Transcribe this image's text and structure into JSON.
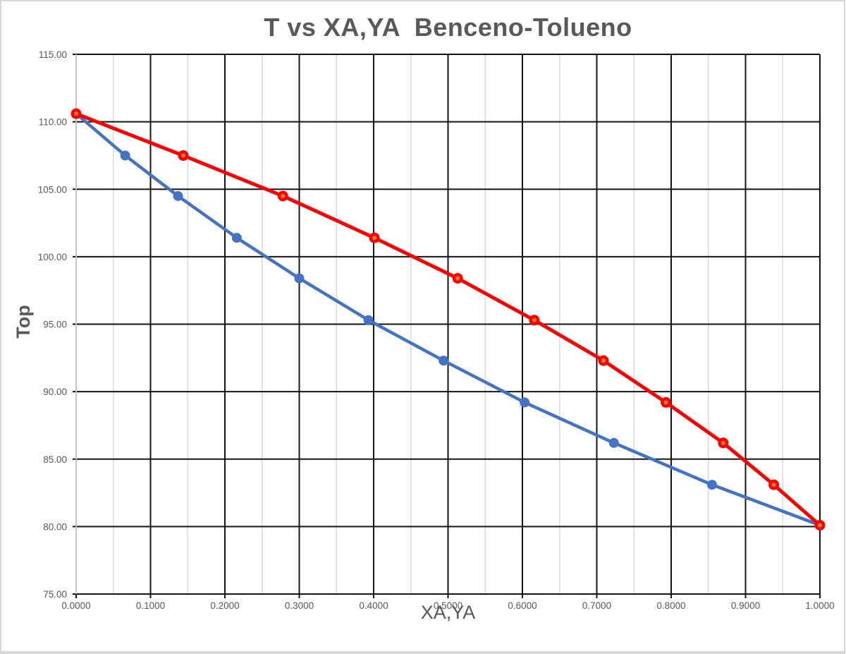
{
  "chart_data": {
    "type": "line",
    "title": "T vs XA,YA  Benceno-Tolueno",
    "xlabel": "XA,YA",
    "ylabel": "Top",
    "xlim": [
      0.0,
      1.0
    ],
    "ylim": [
      75.0,
      115.0
    ],
    "grid": {
      "major_color": "#141414",
      "minor_color": "#dcdcdc",
      "axis_line_color": "#bfbfbf",
      "x_major_step": 0.1,
      "x_minor_step": 0.05,
      "y_major_step": 5,
      "minor_horizontal": false
    },
    "x_ticks": {
      "values": [
        0.0,
        0.1,
        0.2,
        0.3,
        0.4,
        0.5,
        0.6,
        0.7,
        0.8,
        0.9,
        1.0
      ],
      "labels": [
        "0.0000",
        "0.1000",
        "0.2000",
        "0.3000",
        "0.4000",
        "0.5000",
        "0.6000",
        "0.7000",
        "0.8000",
        "0.9000",
        "1.0000"
      ]
    },
    "x_minor_ticks": [
      0.05,
      0.15,
      0.25,
      0.35,
      0.45,
      0.55,
      0.65,
      0.75,
      0.85,
      0.95
    ],
    "y_ticks": {
      "values": [
        75,
        80,
        85,
        90,
        95,
        100,
        105,
        110,
        115
      ],
      "labels": [
        "75.00",
        "80.00",
        "85.00",
        "90.00",
        "95.00",
        "100.00",
        "105.00",
        "110.00",
        "115.00"
      ]
    },
    "temperatures": [
      110.6,
      107.5,
      104.5,
      101.4,
      98.4,
      95.3,
      92.3,
      89.2,
      86.2,
      83.1,
      80.1
    ],
    "series": [
      {
        "name": "XA",
        "color": "#4472C4",
        "line_width": 4.5,
        "marker": "circle",
        "marker_radius": 7,
        "values": [
          0.0,
          0.066,
          0.137,
          0.216,
          0.3,
          0.393,
          0.494,
          0.603,
          0.723,
          0.855,
          1.0
        ]
      },
      {
        "name": "YA",
        "color": "#FF0000",
        "line_width": 5,
        "marker": "circle-dot",
        "marker_radius": 7.5,
        "marker_center_color": "#ED7D31",
        "marker_center_radius": 3,
        "values": [
          0.0,
          0.144,
          0.278,
          0.401,
          0.513,
          0.616,
          0.709,
          0.793,
          0.87,
          0.938,
          1.0
        ]
      }
    ]
  }
}
